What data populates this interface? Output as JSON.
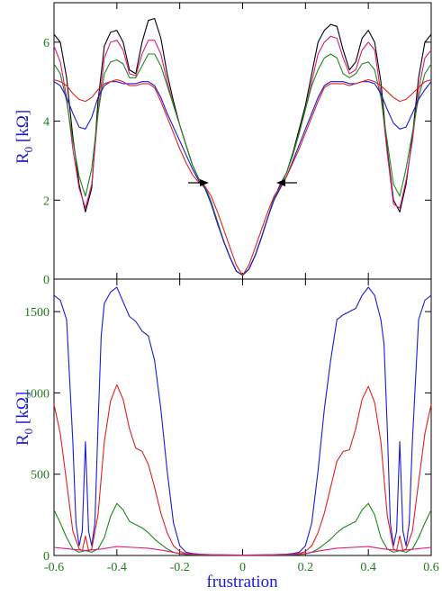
{
  "chart_data": [
    {
      "type": "line",
      "panel": "top",
      "ylabel": "R",
      "ylabel_sub": "0",
      "ylabel_unit": " [kΩ]",
      "xlim": [
        -0.6,
        0.6
      ],
      "ylim": [
        0,
        7
      ],
      "yticks": [
        0,
        2,
        4,
        6
      ],
      "ytick_labels": [
        "0",
        "2",
        "4",
        "6"
      ],
      "grid": false,
      "annotations": [
        "left-arrow at f≈-0.12, R≈2.4",
        "right-arrow at f≈0.12, R≈2.4"
      ],
      "series": [
        {
          "color": "#000000",
          "x": [
            -0.6,
            -0.58,
            -0.56,
            -0.54,
            -0.52,
            -0.5,
            -0.48,
            -0.46,
            -0.44,
            -0.42,
            -0.4,
            -0.38,
            -0.36,
            -0.34,
            -0.32,
            -0.3,
            -0.28,
            -0.26,
            -0.24,
            -0.22,
            -0.2,
            -0.18,
            -0.16,
            -0.14,
            -0.12,
            -0.1,
            -0.08,
            -0.06,
            -0.04,
            -0.02,
            0,
            0.02,
            0.04,
            0.06,
            0.08,
            0.1,
            0.12,
            0.14,
            0.16,
            0.18,
            0.2,
            0.22,
            0.24,
            0.26,
            0.28,
            0.3,
            0.32,
            0.34,
            0.36,
            0.38,
            0.4,
            0.42,
            0.44,
            0.46,
            0.48,
            0.5,
            0.52,
            0.54,
            0.56,
            0.58,
            0.6
          ],
          "y": [
            6.2,
            6.0,
            5.1,
            3.6,
            2.4,
            1.7,
            2.3,
            4.5,
            5.9,
            6.25,
            6.3,
            6.0,
            5.3,
            5.2,
            6.0,
            6.55,
            6.6,
            6.1,
            5.2,
            4.5,
            3.9,
            3.4,
            2.9,
            2.55,
            2.35,
            1.95,
            1.45,
            0.95,
            0.55,
            0.2,
            0.1,
            0.25,
            0.6,
            1.05,
            1.55,
            2.05,
            2.4,
            2.7,
            3.2,
            3.8,
            4.4,
            5.2,
            6.0,
            6.3,
            6.45,
            6.4,
            5.8,
            5.3,
            5.5,
            6.1,
            6.3,
            6.0,
            5.0,
            3.3,
            2.0,
            1.7,
            2.4,
            3.6,
            5.1,
            6.0,
            6.2
          ]
        },
        {
          "color": "#e0187a",
          "x": [
            -0.6,
            -0.58,
            -0.56,
            -0.54,
            -0.52,
            -0.5,
            -0.48,
            -0.46,
            -0.44,
            -0.42,
            -0.4,
            -0.38,
            -0.36,
            -0.34,
            -0.32,
            -0.3,
            -0.28,
            -0.26,
            -0.24,
            -0.22,
            -0.2,
            -0.18,
            -0.16,
            -0.14,
            -0.12,
            -0.1,
            -0.08,
            -0.06,
            -0.04,
            -0.02,
            0,
            0.02,
            0.04,
            0.06,
            0.08,
            0.1,
            0.12,
            0.14,
            0.16,
            0.18,
            0.2,
            0.22,
            0.24,
            0.26,
            0.28,
            0.3,
            0.32,
            0.34,
            0.36,
            0.38,
            0.4,
            0.42,
            0.44,
            0.46,
            0.48,
            0.5,
            0.52,
            0.54,
            0.56,
            0.58,
            0.6
          ],
          "y": [
            5.9,
            5.5,
            4.6,
            3.3,
            2.3,
            1.8,
            2.4,
            4.2,
            5.6,
            6.0,
            6.05,
            5.8,
            5.2,
            5.15,
            5.7,
            6.05,
            6.05,
            5.7,
            5.0,
            4.4,
            3.9,
            3.4,
            2.9,
            2.55,
            2.35,
            1.95,
            1.45,
            0.95,
            0.55,
            0.2,
            0.1,
            0.25,
            0.6,
            1.05,
            1.55,
            2.05,
            2.35,
            2.7,
            3.15,
            3.7,
            4.3,
            5.0,
            5.7,
            6.0,
            6.15,
            6.1,
            5.6,
            5.2,
            5.3,
            5.8,
            6.0,
            5.8,
            4.7,
            3.2,
            1.9,
            1.8,
            2.5,
            3.5,
            4.8,
            5.6,
            5.8
          ]
        },
        {
          "color": "#1a8a1a",
          "x": [
            -0.6,
            -0.58,
            -0.56,
            -0.54,
            -0.52,
            -0.5,
            -0.48,
            -0.46,
            -0.44,
            -0.42,
            -0.4,
            -0.38,
            -0.36,
            -0.34,
            -0.32,
            -0.3,
            -0.28,
            -0.26,
            -0.24,
            -0.22,
            -0.2,
            -0.18,
            -0.16,
            -0.14,
            -0.12,
            -0.1,
            -0.08,
            -0.06,
            -0.04,
            -0.02,
            0,
            0.02,
            0.04,
            0.06,
            0.08,
            0.1,
            0.12,
            0.14,
            0.16,
            0.18,
            0.2,
            0.22,
            0.24,
            0.26,
            0.28,
            0.3,
            0.32,
            0.34,
            0.36,
            0.38,
            0.4,
            0.42,
            0.44,
            0.46,
            0.48,
            0.5,
            0.52,
            0.54,
            0.56,
            0.58,
            0.6
          ],
          "y": [
            5.45,
            5.2,
            4.5,
            3.5,
            2.6,
            2.1,
            2.8,
            4.2,
            5.2,
            5.5,
            5.55,
            5.45,
            5.1,
            5.1,
            5.4,
            5.7,
            5.7,
            5.4,
            4.9,
            4.4,
            3.9,
            3.4,
            2.9,
            2.55,
            2.35,
            1.95,
            1.45,
            0.95,
            0.55,
            0.2,
            0.1,
            0.25,
            0.6,
            1.05,
            1.55,
            2.05,
            2.35,
            2.7,
            3.15,
            3.7,
            4.3,
            4.9,
            5.3,
            5.6,
            5.7,
            5.6,
            5.2,
            5.1,
            5.2,
            5.45,
            5.5,
            5.3,
            4.6,
            3.5,
            2.4,
            2.1,
            2.8,
            3.7,
            4.6,
            5.2,
            5.45
          ]
        },
        {
          "color": "#1a1ad6",
          "x": [
            -0.6,
            -0.58,
            -0.56,
            -0.54,
            -0.52,
            -0.5,
            -0.48,
            -0.46,
            -0.44,
            -0.42,
            -0.4,
            -0.38,
            -0.36,
            -0.34,
            -0.32,
            -0.3,
            -0.28,
            -0.26,
            -0.24,
            -0.22,
            -0.2,
            -0.18,
            -0.16,
            -0.14,
            -0.12,
            -0.1,
            -0.08,
            -0.06,
            -0.04,
            -0.02,
            0,
            0.02,
            0.04,
            0.06,
            0.08,
            0.1,
            0.12,
            0.14,
            0.16,
            0.18,
            0.2,
            0.22,
            0.24,
            0.26,
            0.28,
            0.3,
            0.32,
            0.34,
            0.36,
            0.38,
            0.4,
            0.42,
            0.44,
            0.46,
            0.48,
            0.5,
            0.52,
            0.54,
            0.56,
            0.58,
            0.6
          ],
          "y": [
            5.0,
            4.9,
            4.6,
            4.2,
            3.85,
            3.8,
            4.1,
            4.6,
            4.9,
            5.0,
            5.0,
            4.95,
            4.95,
            4.95,
            5.0,
            5.0,
            4.9,
            4.6,
            4.2,
            3.85,
            3.5,
            3.15,
            2.8,
            2.5,
            2.3,
            1.9,
            1.4,
            0.95,
            0.55,
            0.2,
            0.1,
            0.25,
            0.6,
            1.05,
            1.55,
            2.0,
            2.3,
            2.6,
            3.0,
            3.4,
            3.8,
            4.2,
            4.6,
            4.9,
            5.0,
            5.0,
            5.0,
            4.95,
            4.95,
            5.0,
            5.0,
            4.95,
            4.7,
            4.3,
            3.95,
            3.8,
            3.85,
            4.2,
            4.55,
            4.8,
            5.0
          ]
        },
        {
          "color": "#e02020",
          "x": [
            -0.6,
            -0.58,
            -0.56,
            -0.54,
            -0.52,
            -0.5,
            -0.48,
            -0.46,
            -0.44,
            -0.42,
            -0.4,
            -0.38,
            -0.36,
            -0.34,
            -0.32,
            -0.3,
            -0.28,
            -0.26,
            -0.24,
            -0.22,
            -0.2,
            -0.18,
            -0.16,
            -0.14,
            -0.12,
            -0.1,
            -0.08,
            -0.06,
            -0.04,
            -0.02,
            0,
            0.02,
            0.04,
            0.06,
            0.08,
            0.1,
            0.12,
            0.14,
            0.16,
            0.18,
            0.2,
            0.22,
            0.24,
            0.26,
            0.28,
            0.3,
            0.32,
            0.34,
            0.36,
            0.38,
            0.4,
            0.42,
            0.44,
            0.46,
            0.48,
            0.5,
            0.52,
            0.54,
            0.56,
            0.58,
            0.6
          ],
          "y": [
            5.05,
            5.0,
            4.9,
            4.7,
            4.55,
            4.5,
            4.6,
            4.8,
            4.95,
            5.0,
            5.05,
            5.0,
            4.9,
            4.9,
            4.95,
            4.95,
            4.85,
            4.5,
            4.1,
            3.7,
            3.3,
            2.95,
            2.65,
            2.45,
            2.35,
            2.1,
            1.7,
            1.25,
            0.8,
            0.35,
            0.1,
            0.35,
            0.8,
            1.25,
            1.7,
            2.1,
            2.35,
            2.6,
            2.95,
            3.3,
            3.7,
            4.1,
            4.5,
            4.85,
            4.95,
            4.95,
            4.95,
            4.9,
            4.95,
            5.0,
            5.05,
            5.0,
            4.9,
            4.75,
            4.6,
            4.5,
            4.55,
            4.7,
            4.85,
            5.0,
            5.05
          ]
        }
      ]
    },
    {
      "type": "line",
      "panel": "bottom",
      "ylabel": "R",
      "ylabel_sub": "0",
      "ylabel_unit": " [kΩ]",
      "xlabel": "frustration",
      "xlim": [
        -0.6,
        0.6
      ],
      "ylim": [
        0,
        1700
      ],
      "xticks": [
        -0.6,
        -0.4,
        -0.2,
        0,
        0.2,
        0.4,
        0.6
      ],
      "xtick_labels": [
        "-0.6",
        "-0.4",
        "-0.2",
        "0",
        "0.2",
        "0.4",
        "0.6"
      ],
      "yticks": [
        0,
        500,
        1000,
        1500
      ],
      "ytick_labels": [
        "0",
        "500",
        "1000",
        "1500"
      ],
      "grid": false,
      "series": [
        {
          "color": "#1a1ad6",
          "x": [
            -0.6,
            -0.58,
            -0.56,
            -0.54,
            -0.53,
            -0.52,
            -0.51,
            -0.5,
            -0.49,
            -0.48,
            -0.47,
            -0.46,
            -0.45,
            -0.44,
            -0.42,
            -0.4,
            -0.38,
            -0.36,
            -0.34,
            -0.32,
            -0.3,
            -0.28,
            -0.26,
            -0.24,
            -0.22,
            -0.2,
            -0.18,
            -0.16,
            -0.14,
            -0.1,
            -0.05,
            0,
            0.05,
            0.1,
            0.14,
            0.16,
            0.18,
            0.2,
            0.22,
            0.24,
            0.26,
            0.28,
            0.3,
            0.32,
            0.34,
            0.36,
            0.38,
            0.4,
            0.42,
            0.44,
            0.45,
            0.46,
            0.47,
            0.48,
            0.49,
            0.5,
            0.51,
            0.52,
            0.53,
            0.54,
            0.56,
            0.58,
            0.6
          ],
          "y": [
            1600,
            1570,
            1450,
            700,
            200,
            60,
            150,
            700,
            150,
            60,
            200,
            800,
            1350,
            1550,
            1620,
            1650,
            1560,
            1470,
            1440,
            1380,
            1350,
            1200,
            900,
            520,
            200,
            60,
            20,
            12,
            8,
            5,
            4,
            3,
            4,
            5,
            8,
            12,
            20,
            60,
            200,
            520,
            900,
            1200,
            1450,
            1480,
            1500,
            1520,
            1600,
            1650,
            1600,
            1450,
            1300,
            800,
            200,
            60,
            150,
            700,
            150,
            60,
            200,
            700,
            1450,
            1570,
            1600
          ]
        },
        {
          "color": "#e02020",
          "x": [
            -0.6,
            -0.58,
            -0.56,
            -0.54,
            -0.52,
            -0.51,
            -0.5,
            -0.49,
            -0.48,
            -0.46,
            -0.44,
            -0.42,
            -0.4,
            -0.38,
            -0.36,
            -0.34,
            -0.32,
            -0.3,
            -0.28,
            -0.26,
            -0.24,
            -0.22,
            -0.2,
            -0.18,
            -0.16,
            -0.14,
            -0.1,
            -0.05,
            0,
            0.05,
            0.1,
            0.14,
            0.16,
            0.18,
            0.2,
            0.22,
            0.24,
            0.26,
            0.28,
            0.3,
            0.32,
            0.34,
            0.36,
            0.38,
            0.4,
            0.42,
            0.44,
            0.46,
            0.48,
            0.49,
            0.5,
            0.51,
            0.52,
            0.54,
            0.56,
            0.58,
            0.6
          ],
          "y": [
            930,
            750,
            450,
            150,
            40,
            30,
            120,
            30,
            40,
            250,
            700,
            950,
            1050,
            960,
            780,
            660,
            640,
            560,
            420,
            260,
            140,
            60,
            25,
            12,
            8,
            6,
            4,
            3,
            2,
            3,
            4,
            6,
            8,
            12,
            25,
            60,
            140,
            260,
            420,
            580,
            640,
            650,
            780,
            960,
            1040,
            940,
            700,
            250,
            40,
            30,
            120,
            30,
            40,
            150,
            450,
            750,
            930
          ]
        },
        {
          "color": "#1a8a1a",
          "x": [
            -0.6,
            -0.58,
            -0.56,
            -0.54,
            -0.52,
            -0.5,
            -0.48,
            -0.46,
            -0.44,
            -0.42,
            -0.4,
            -0.38,
            -0.36,
            -0.34,
            -0.32,
            -0.3,
            -0.28,
            -0.26,
            -0.24,
            -0.22,
            -0.2,
            -0.18,
            -0.14,
            -0.1,
            -0.05,
            0,
            0.05,
            0.1,
            0.14,
            0.18,
            0.2,
            0.22,
            0.24,
            0.26,
            0.28,
            0.3,
            0.32,
            0.34,
            0.36,
            0.38,
            0.4,
            0.42,
            0.44,
            0.46,
            0.48,
            0.5,
            0.52,
            0.54,
            0.56,
            0.58,
            0.6
          ],
          "y": [
            280,
            200,
            110,
            40,
            20,
            30,
            20,
            40,
            110,
            240,
            320,
            280,
            210,
            190,
            170,
            140,
            100,
            70,
            40,
            20,
            10,
            6,
            4,
            3,
            2,
            2,
            2,
            3,
            4,
            6,
            10,
            20,
            40,
            70,
            100,
            140,
            170,
            190,
            210,
            280,
            320,
            250,
            110,
            40,
            20,
            30,
            20,
            40,
            110,
            200,
            280
          ]
        },
        {
          "color": "#e0187a",
          "x": [
            -0.6,
            -0.55,
            -0.5,
            -0.45,
            -0.4,
            -0.35,
            -0.3,
            -0.25,
            -0.2,
            -0.15,
            -0.1,
            -0.05,
            0,
            0.05,
            0.1,
            0.15,
            0.2,
            0.25,
            0.3,
            0.35,
            0.4,
            0.45,
            0.5,
            0.55,
            0.6
          ],
          "y": [
            50,
            40,
            30,
            40,
            55,
            50,
            45,
            30,
            12,
            6,
            4,
            3,
            2,
            3,
            4,
            6,
            12,
            30,
            45,
            50,
            55,
            40,
            30,
            40,
            50
          ]
        }
      ]
    }
  ]
}
